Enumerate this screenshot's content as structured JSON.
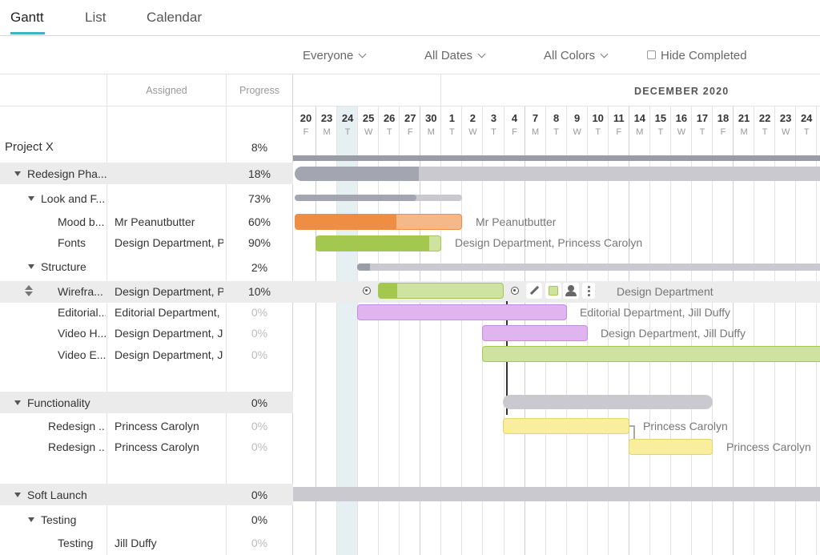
{
  "tabs": [
    {
      "label": "Gantt",
      "active": true
    },
    {
      "label": "List",
      "active": false
    },
    {
      "label": "Calendar",
      "active": false
    }
  ],
  "filters": {
    "people": "Everyone",
    "dates": "All Dates",
    "colors": "All Colors",
    "hide_completed": "Hide Completed"
  },
  "columns": {
    "assigned": "Assigned",
    "progress": "Progress"
  },
  "timeline": {
    "month": "DECEMBER 2020",
    "days": [
      {
        "n": "20",
        "d": "F"
      },
      {
        "n": "23",
        "d": "M"
      },
      {
        "n": "24",
        "d": "T"
      },
      {
        "n": "25",
        "d": "W"
      },
      {
        "n": "26",
        "d": "T"
      },
      {
        "n": "27",
        "d": "F"
      },
      {
        "n": "30",
        "d": "M"
      },
      {
        "n": "1",
        "d": "T"
      },
      {
        "n": "2",
        "d": "W"
      },
      {
        "n": "3",
        "d": "T"
      },
      {
        "n": "4",
        "d": "F"
      },
      {
        "n": "7",
        "d": "M"
      },
      {
        "n": "8",
        "d": "T"
      },
      {
        "n": "9",
        "d": "W"
      },
      {
        "n": "10",
        "d": "T"
      },
      {
        "n": "11",
        "d": "F"
      },
      {
        "n": "14",
        "d": "M"
      },
      {
        "n": "15",
        "d": "T"
      },
      {
        "n": "16",
        "d": "W"
      },
      {
        "n": "17",
        "d": "T"
      },
      {
        "n": "18",
        "d": "F"
      },
      {
        "n": "21",
        "d": "M"
      },
      {
        "n": "22",
        "d": "T"
      },
      {
        "n": "23",
        "d": "W"
      },
      {
        "n": "24",
        "d": "T"
      }
    ]
  },
  "rows": {
    "project": {
      "name": "Project X",
      "progress": "8%"
    },
    "redesign": {
      "name": "Redesign Pha...",
      "progress": "18%"
    },
    "look": {
      "name": "Look and F...",
      "progress": "73%"
    },
    "mood": {
      "name": "Mood b...",
      "assigned": "Mr Peanutbutter",
      "progress": "60%",
      "label": "Mr Peanutbutter"
    },
    "fonts": {
      "name": "Fonts",
      "assigned": "Design Department, P",
      "progress": "90%",
      "label": "Design Department, Princess Carolyn"
    },
    "structure": {
      "name": "Structure",
      "progress": "2%"
    },
    "wireframe": {
      "name": "Wirefra...",
      "assigned": "Design Department, P",
      "progress": "10%",
      "label": "Design Department"
    },
    "editorial": {
      "name": "Editorial...",
      "assigned": "Editorial Department,",
      "progress": "0%",
      "label": "Editorial Department, Jill Duffy"
    },
    "videoh": {
      "name": "Video H...",
      "assigned": "Design Department, J",
      "progress": "0%",
      "label": "Design Department, Jill Duffy"
    },
    "videoe": {
      "name": "Video E...",
      "assigned": "Design Department, J",
      "progress": "0%"
    },
    "functionality": {
      "name": "Functionality",
      "progress": "0%"
    },
    "redesign1": {
      "name": "Redesign ...",
      "assigned": "Princess Carolyn",
      "progress": "0%",
      "label": "Princess Carolyn"
    },
    "redesign2": {
      "name": "Redesign ...",
      "assigned": "Princess Carolyn",
      "progress": "0%",
      "label": "Princess Carolyn"
    },
    "softlaunch": {
      "name": "Soft Launch",
      "progress": "0%"
    },
    "testing_group": {
      "name": "Testing",
      "progress": "0%"
    },
    "testing": {
      "name": "Testing",
      "assigned": "Jill Duffy",
      "progress": "0%"
    }
  },
  "colors": {
    "accent": "#3fb1c8",
    "orange": "#ef8d42",
    "green": "#a3c74f",
    "purple": "#dfb4ef",
    "yellow": "#f8ee9e",
    "gray": "#c9c9cf"
  },
  "task_tools": [
    "pencil-icon",
    "color-swatch-icon",
    "person-icon",
    "more-icon"
  ]
}
